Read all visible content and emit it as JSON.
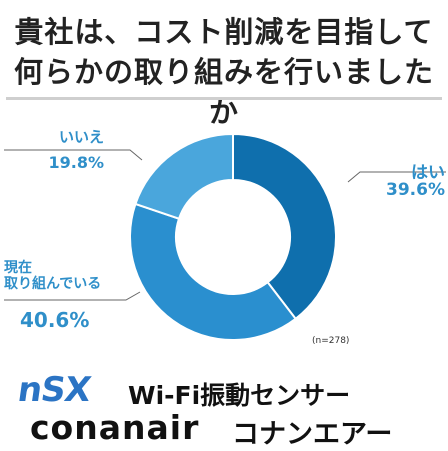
{
  "title": {
    "line1": "貴社は、コスト削減を目指して",
    "line2": "何らかの取り組みを行いましたか"
  },
  "note": "(n=278)",
  "brand": {
    "mark": "nSX",
    "product": "Wi-Fi振動センサー",
    "name": "conanair",
    "kana": "コナンエアー"
  },
  "colors": {
    "yes": "#0f6fad",
    "in_progress": "#2a8fcf",
    "no": "#4aa6dc",
    "label": "#2f8fc9",
    "title": "#222222"
  },
  "chart_data": {
    "type": "pie",
    "donut": true,
    "title": "貴社は、コスト削減を目指して何らかの取り組みを行いましたか",
    "categories": [
      "はい",
      "現在取り組んでいる",
      "いいえ"
    ],
    "label_lines": [
      [
        "はい"
      ],
      [
        "現在",
        "取り組んでいる"
      ],
      [
        "いいえ"
      ]
    ],
    "values": [
      39.6,
      40.6,
      19.8
    ],
    "value_labels": [
      "39.6%",
      "40.6%",
      "19.8%"
    ],
    "sample": "(n=278)"
  }
}
